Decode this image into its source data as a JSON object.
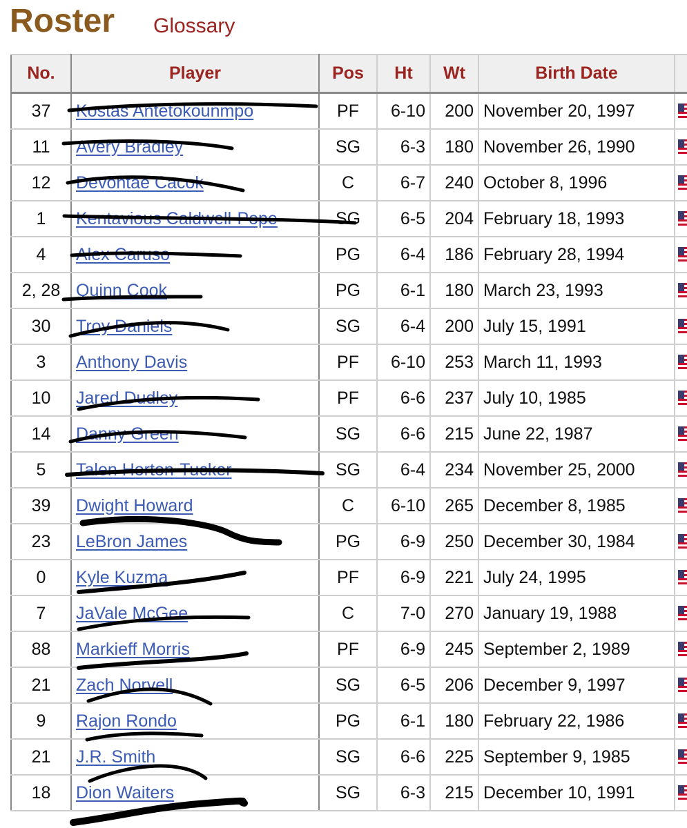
{
  "heading": {
    "title": "Roster",
    "glossary_link": "Glossary"
  },
  "table": {
    "columns": [
      "No.",
      "Player",
      "Pos",
      "Ht",
      "Wt",
      "Birth Date",
      ""
    ],
    "rows": [
      {
        "no": "37",
        "player": "Kostas Antetokounmpo",
        "pos": "PF",
        "ht": "6-10",
        "wt": "200",
        "birth": "November 20, 1997"
      },
      {
        "no": "11",
        "player": "Avery Bradley",
        "pos": "SG",
        "ht": "6-3",
        "wt": "180",
        "birth": "November 26, 1990"
      },
      {
        "no": "12",
        "player": "Devontae Cacok",
        "pos": "C",
        "ht": "6-7",
        "wt": "240",
        "birth": "October 8, 1996"
      },
      {
        "no": "1",
        "player": "Kentavious Caldwell-Pope",
        "pos": "SG",
        "ht": "6-5",
        "wt": "204",
        "birth": "February 18, 1993"
      },
      {
        "no": "4",
        "player": "Alex Caruso",
        "pos": "PG",
        "ht": "6-4",
        "wt": "186",
        "birth": "February 28, 1994"
      },
      {
        "no": "2, 28",
        "player": "Quinn Cook",
        "pos": "PG",
        "ht": "6-1",
        "wt": "180",
        "birth": "March 23, 1993"
      },
      {
        "no": "30",
        "player": "Troy Daniels",
        "pos": "SG",
        "ht": "6-4",
        "wt": "200",
        "birth": "July 15, 1991"
      },
      {
        "no": "3",
        "player": "Anthony Davis",
        "pos": "PF",
        "ht": "6-10",
        "wt": "253",
        "birth": "March 11, 1993"
      },
      {
        "no": "10",
        "player": "Jared Dudley",
        "pos": "PF",
        "ht": "6-6",
        "wt": "237",
        "birth": "July 10, 1985"
      },
      {
        "no": "14",
        "player": "Danny Green",
        "pos": "SG",
        "ht": "6-6",
        "wt": "215",
        "birth": "June 22, 1987"
      },
      {
        "no": "5",
        "player": "Talen Horton-Tucker",
        "pos": "SG",
        "ht": "6-4",
        "wt": "234",
        "birth": "November 25, 2000"
      },
      {
        "no": "39",
        "player": "Dwight Howard",
        "pos": "C",
        "ht": "6-10",
        "wt": "265",
        "birth": "December 8, 1985"
      },
      {
        "no": "23",
        "player": "LeBron James",
        "pos": "PG",
        "ht": "6-9",
        "wt": "250",
        "birth": "December 30, 1984"
      },
      {
        "no": "0",
        "player": "Kyle Kuzma",
        "pos": "PF",
        "ht": "6-9",
        "wt": "221",
        "birth": "July 24, 1995"
      },
      {
        "no": "7",
        "player": "JaVale McGee",
        "pos": "C",
        "ht": "7-0",
        "wt": "270",
        "birth": "January 19, 1988"
      },
      {
        "no": "88",
        "player": "Markieff Morris",
        "pos": "PF",
        "ht": "6-9",
        "wt": "245",
        "birth": "September 2, 1989"
      },
      {
        "no": "21",
        "player": "Zach Norvell",
        "pos": "SG",
        "ht": "6-5",
        "wt": "206",
        "birth": "December 9, 1997"
      },
      {
        "no": "9",
        "player": "Rajon Rondo",
        "pos": "PG",
        "ht": "6-1",
        "wt": "180",
        "birth": "February 22, 1986"
      },
      {
        "no": "21",
        "player": "J.R. Smith",
        "pos": "SG",
        "ht": "6-6",
        "wt": "225",
        "birth": "September 9, 1985"
      },
      {
        "no": "18",
        "player": "Dion Waiters",
        "pos": "SG",
        "ht": "6-3",
        "wt": "215",
        "birth": "December 10, 1991"
      }
    ]
  },
  "colors": {
    "heading": "#8b5a1e",
    "header_text": "#9b2420",
    "link": "#3b5bb5",
    "header_bg": "#efefef",
    "scribble": "#000000"
  },
  "icons": {
    "country_flag": "us-flag-icon"
  }
}
